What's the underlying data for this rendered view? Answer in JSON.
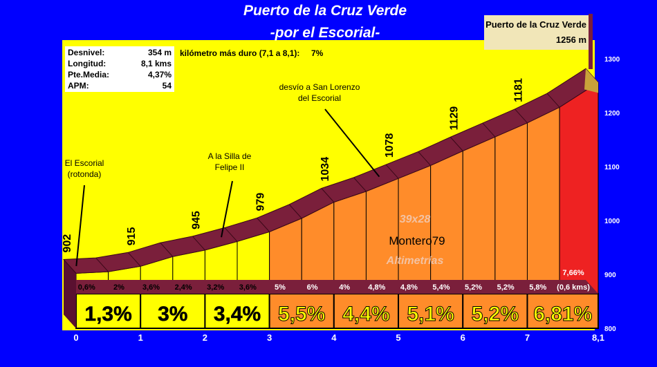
{
  "colors": {
    "background": "#0000ff",
    "panel": "#ffff00",
    "profile_top": "#7a1f3b",
    "profile_front": "#5a1030",
    "bar_yellow": "#ffff00",
    "bar_orange": "#ff8c2a",
    "bar_red": "#ee2222",
    "pass_box": "#f1e6b8"
  },
  "header": {
    "title": "Puerto de la Cruz Verde",
    "subtitle": "-por el Escorial-"
  },
  "stats": [
    {
      "label": "Desnivel:",
      "value": "354 m"
    },
    {
      "label": "Longitud:",
      "value": "8,1 kms"
    },
    {
      "label": "Pte.Media:",
      "value": "4,37%"
    },
    {
      "label": "APM:",
      "value": "54"
    }
  ],
  "hardest_km": {
    "label": "kilómetro más duro (7,1 a 8,1):",
    "value": "7%"
  },
  "summit": {
    "name": "Puerto de la Cruz Verde",
    "altitude": "1256 m"
  },
  "watermark": {
    "line1": "39x28",
    "line2": "Montero79",
    "line3": "Altimetrías"
  },
  "chart_data": {
    "type": "area",
    "xlabel": "",
    "ylabel": "",
    "xlim": [
      0,
      8.1
    ],
    "ylim": [
      800,
      1300
    ],
    "x_ticks": [
      "0",
      "1",
      "2",
      "3",
      "4",
      "5",
      "6",
      "7",
      "8,1"
    ],
    "y_ticks": [
      "800",
      "900",
      "1000",
      "1100",
      "1200",
      "1300"
    ],
    "profile": {
      "x": [
        0,
        0.5,
        1,
        1.5,
        2,
        2.5,
        3,
        3.5,
        4,
        4.5,
        5,
        5.5,
        6,
        6.5,
        7,
        7.5,
        8.1
      ],
      "y": [
        902,
        905,
        915,
        933,
        945,
        961,
        979,
        1004,
        1034,
        1054,
        1078,
        1102,
        1129,
        1155,
        1181,
        1210,
        1256
      ]
    },
    "altitude_labels": [
      {
        "x": 0,
        "value": "902"
      },
      {
        "x": 1,
        "value": "915"
      },
      {
        "x": 2,
        "value": "945"
      },
      {
        "x": 3,
        "value": "979"
      },
      {
        "x": 4,
        "value": "1034"
      },
      {
        "x": 5,
        "value": "1078"
      },
      {
        "x": 6,
        "value": "1129"
      },
      {
        "x": 7,
        "value": "1181"
      }
    ],
    "segments_500m": [
      {
        "x0": 0,
        "x1": 0.5,
        "grade": "0,6%"
      },
      {
        "x0": 0.5,
        "x1": 1,
        "grade": "2%"
      },
      {
        "x0": 1,
        "x1": 1.5,
        "grade": "3,6%"
      },
      {
        "x0": 1.5,
        "x1": 2,
        "grade": "2,4%"
      },
      {
        "x0": 2,
        "x1": 2.5,
        "grade": "3,2%"
      },
      {
        "x0": 2.5,
        "x1": 3,
        "grade": "3,6%"
      },
      {
        "x0": 3,
        "x1": 3.5,
        "grade": "5%"
      },
      {
        "x0": 3.5,
        "x1": 4,
        "grade": "6%"
      },
      {
        "x0": 4,
        "x1": 4.5,
        "grade": "4%"
      },
      {
        "x0": 4.5,
        "x1": 5,
        "grade": "4,8%"
      },
      {
        "x0": 5,
        "x1": 5.5,
        "grade": "4,8%"
      },
      {
        "x0": 5.5,
        "x1": 6,
        "grade": "5,4%"
      },
      {
        "x0": 6,
        "x1": 6.5,
        "grade": "5,2%"
      },
      {
        "x0": 6.5,
        "x1": 7,
        "grade": "5,2%"
      },
      {
        "x0": 7,
        "x1": 7.5,
        "grade": "5,8%"
      },
      {
        "x0": 7.5,
        "x1": 8.1,
        "grade": "7,66%",
        "note": "(0,6 kms)"
      }
    ],
    "segments_km": [
      {
        "x0": 0,
        "x1": 1,
        "grade": "1,3%"
      },
      {
        "x0": 1,
        "x1": 2,
        "grade": "3%"
      },
      {
        "x0": 2,
        "x1": 3,
        "grade": "3,4%"
      },
      {
        "x0": 3,
        "x1": 4,
        "grade": "5,5%"
      },
      {
        "x0": 4,
        "x1": 5,
        "grade": "4,4%"
      },
      {
        "x0": 5,
        "x1": 6,
        "grade": "5,1%"
      },
      {
        "x0": 6,
        "x1": 7,
        "grade": "5,2%"
      },
      {
        "x0": 7,
        "x1": 8.1,
        "grade": "6,81%"
      }
    ],
    "annotations": [
      {
        "x": 0.1,
        "lines": [
          "El Escorial",
          "(rotonda)"
        ]
      },
      {
        "x": 2.35,
        "lines": [
          "A la Silla de",
          "Felipe II"
        ]
      },
      {
        "x": 4.8,
        "lines": [
          "desvío a San Lorenzo",
          "del Escorial"
        ]
      }
    ]
  }
}
